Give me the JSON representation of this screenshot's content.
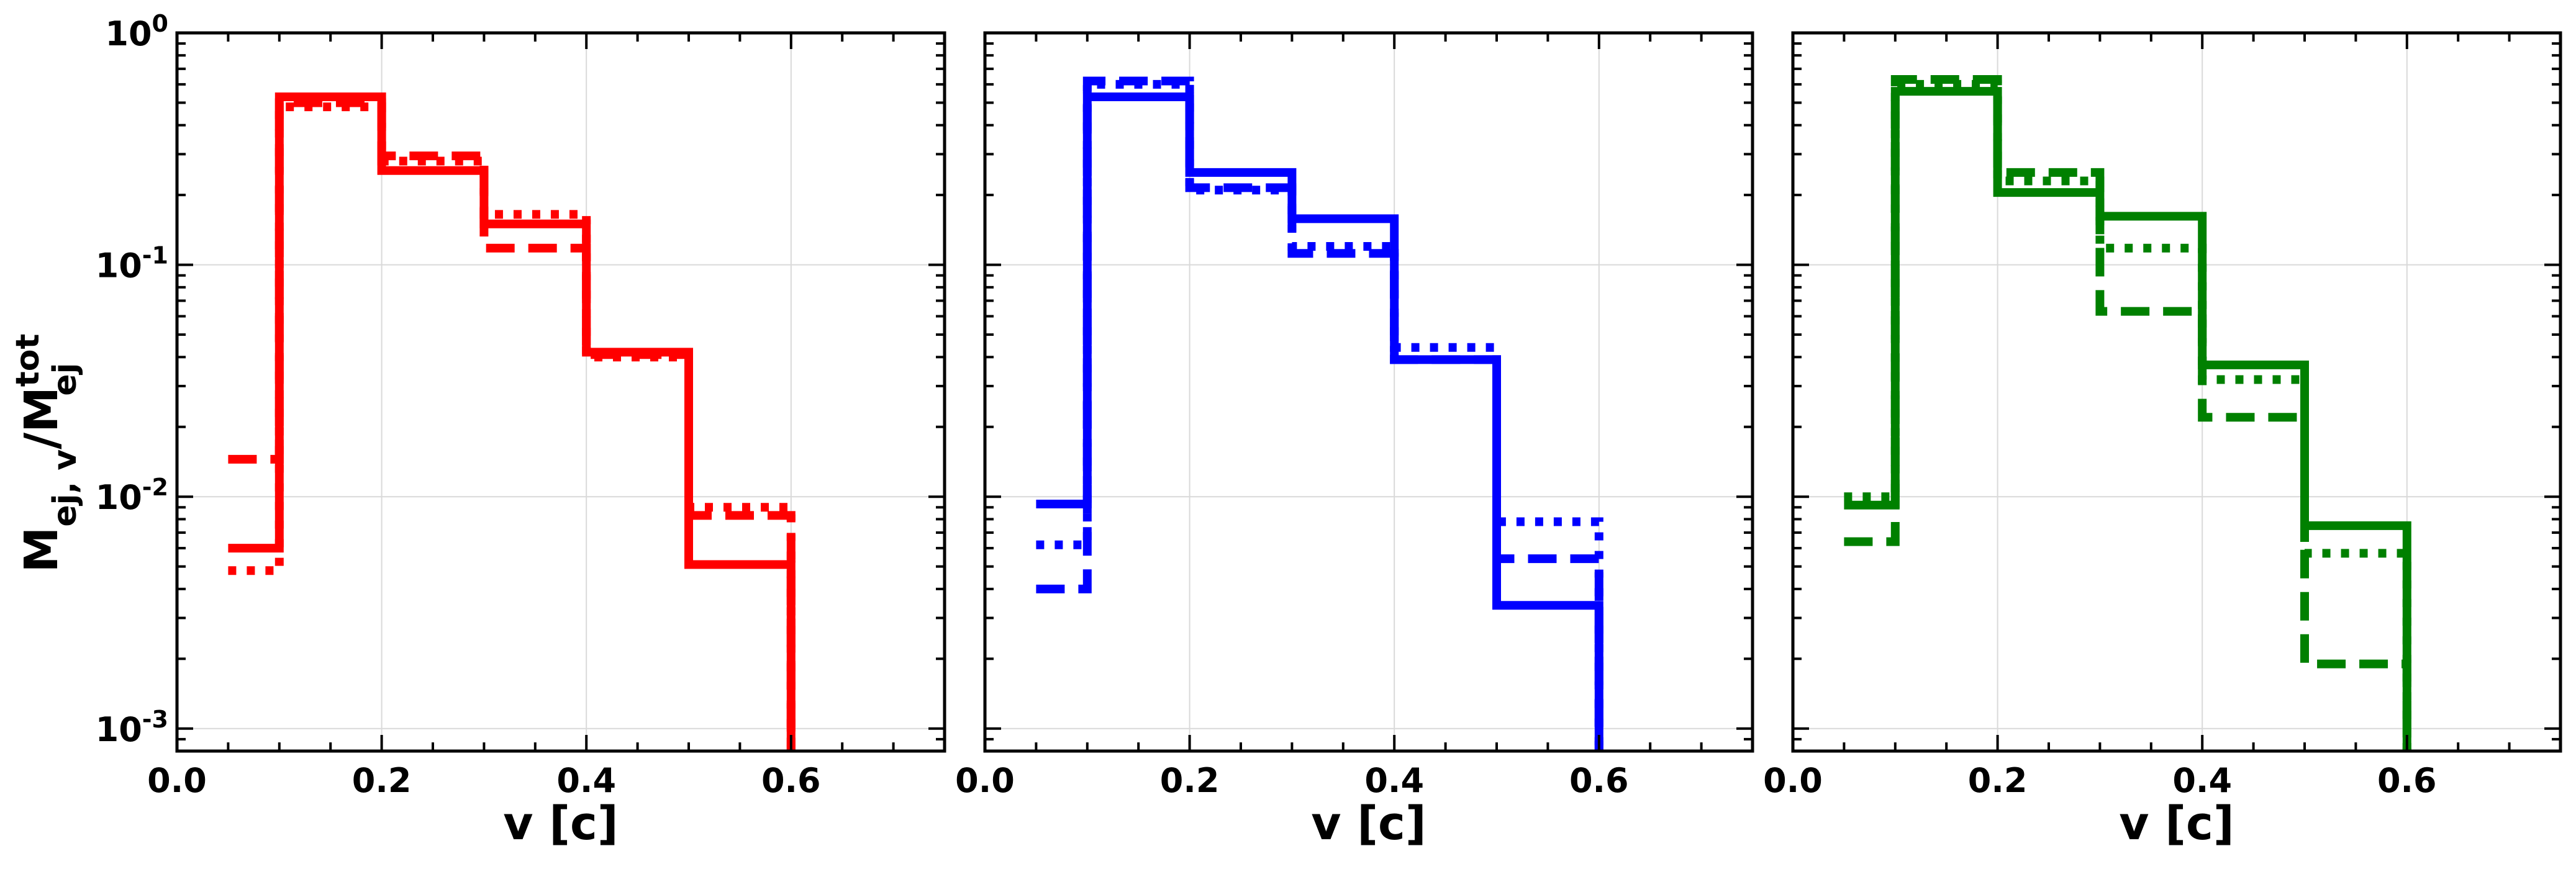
{
  "figure": {
    "ylabel_main": "M",
    "ylabel_sub": "ej, v",
    "ylabel_slash": "/M",
    "ylabel_sup": "tot",
    "ylabel_sub2": "ej"
  },
  "chart_data": [
    {
      "type": "line",
      "step": true,
      "xlabel": "v [c]",
      "xlim": [
        0,
        0.75
      ],
      "ylim": [
        0.0008,
        1
      ],
      "yscale": "log",
      "grid": true,
      "xticks": [
        "0.0",
        "0.2",
        "0.4",
        "0.6"
      ],
      "yticks": [
        {
          "base": "10",
          "exp": "0"
        },
        {
          "base": "10",
          "exp": "-1"
        },
        {
          "base": "10",
          "exp": "-2"
        },
        {
          "base": "10",
          "exp": "-3"
        }
      ],
      "color": "#ff0000",
      "bin_edges": [
        0.05,
        0.1,
        0.2,
        0.3,
        0.4,
        0.5,
        0.6
      ],
      "series": [
        {
          "style": "solid",
          "values": [
            0.006,
            0.53,
            0.255,
            0.15,
            0.042,
            0.0051
          ]
        },
        {
          "style": "dashed",
          "values": [
            0.0145,
            0.5,
            0.295,
            0.118,
            0.041,
            0.0083
          ]
        },
        {
          "style": "dotted",
          "values": [
            0.0048,
            0.48,
            0.28,
            0.165,
            0.04,
            0.009
          ]
        }
      ]
    },
    {
      "type": "line",
      "step": true,
      "xlabel": "v [c]",
      "xlim": [
        0,
        0.75
      ],
      "ylim": [
        0.0008,
        1
      ],
      "yscale": "log",
      "grid": true,
      "xticks": [
        "0.0",
        "0.2",
        "0.4",
        "0.6"
      ],
      "color": "#0000ff",
      "bin_edges": [
        0.05,
        0.1,
        0.2,
        0.3,
        0.4,
        0.5,
        0.6
      ],
      "series": [
        {
          "style": "solid",
          "values": [
            0.0093,
            0.53,
            0.25,
            0.158,
            0.039,
            0.0034
          ]
        },
        {
          "style": "dashed",
          "values": [
            0.004,
            0.62,
            0.215,
            0.112,
            0.039,
            0.0054
          ]
        },
        {
          "style": "dotted",
          "values": [
            0.0062,
            0.6,
            0.21,
            0.12,
            0.044,
            0.0078
          ]
        }
      ]
    },
    {
      "type": "line",
      "step": true,
      "xlabel": "v [c]",
      "xlim": [
        0,
        0.75
      ],
      "ylim": [
        0.0008,
        1
      ],
      "yscale": "log",
      "grid": true,
      "xticks": [
        "0.0",
        "0.2",
        "0.4",
        "0.6"
      ],
      "color": "#008000",
      "bin_edges": [
        0.05,
        0.1,
        0.2,
        0.3,
        0.4,
        0.5,
        0.6
      ],
      "series": [
        {
          "style": "solid",
          "values": [
            0.0092,
            0.56,
            0.205,
            0.162,
            0.037,
            0.0075
          ]
        },
        {
          "style": "dashed",
          "values": [
            0.0064,
            0.63,
            0.25,
            0.063,
            0.022,
            0.0019
          ]
        },
        {
          "style": "dotted",
          "values": [
            0.01,
            0.6,
            0.23,
            0.118,
            0.032,
            0.0057
          ]
        }
      ]
    }
  ]
}
